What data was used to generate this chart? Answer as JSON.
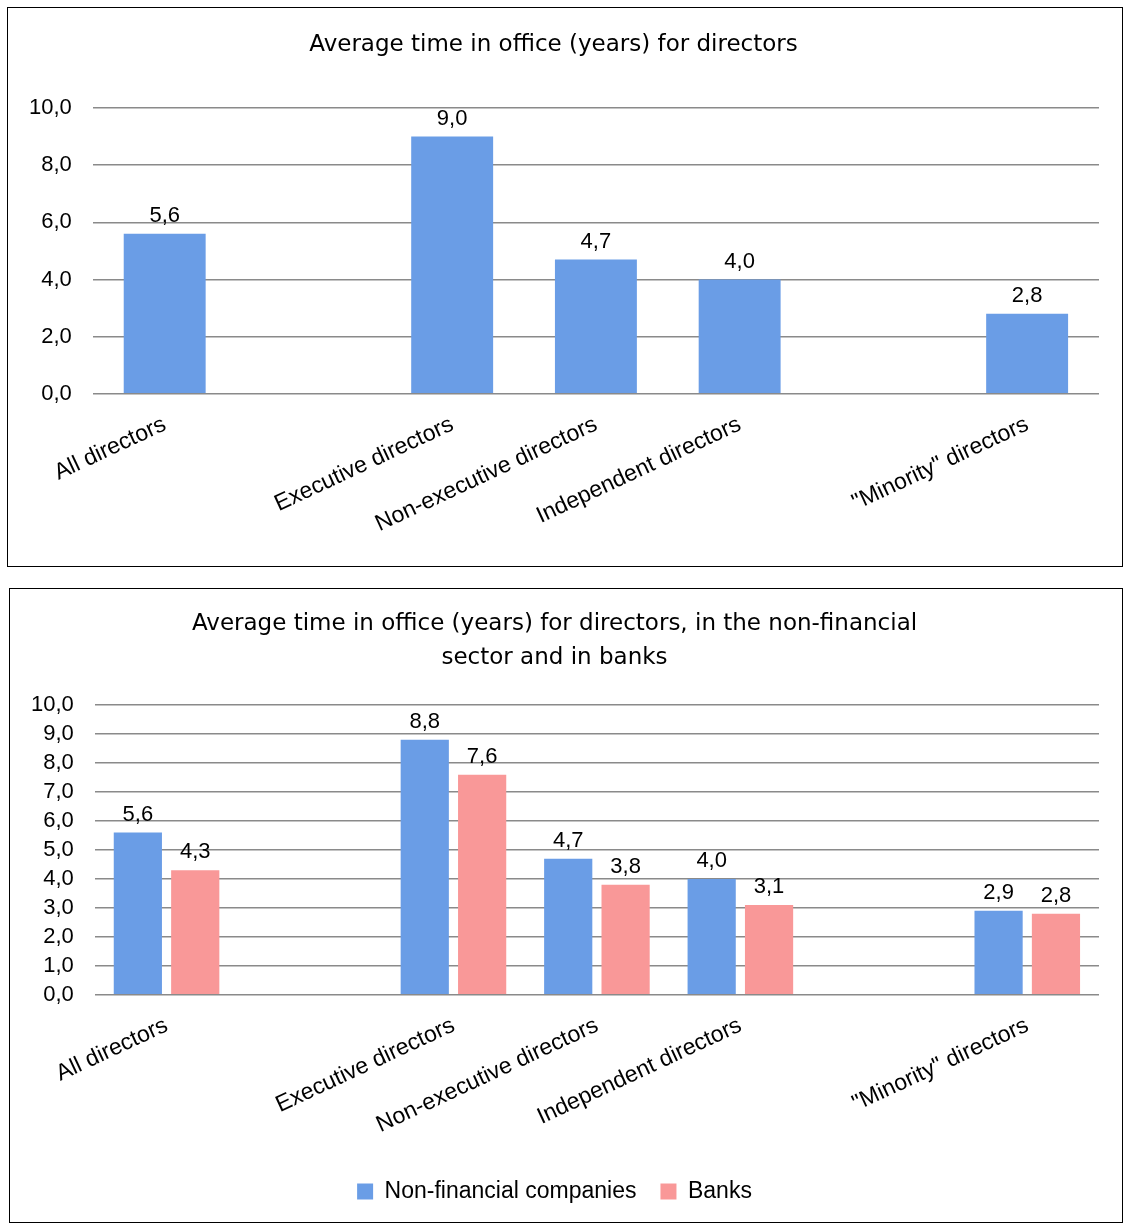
{
  "chart_data": [
    {
      "type": "bar",
      "title": "Average time in office (years) for directors",
      "categories": [
        "All directors",
        null,
        "Executive directors",
        "Non-executive directors",
        "Independent directors",
        null,
        "\"Minority\" directors"
      ],
      "values": [
        5.6,
        null,
        9.0,
        4.7,
        4.0,
        null,
        2.8
      ],
      "color": "#6a9de6",
      "value_labels": [
        "5,6",
        null,
        "9,0",
        "4,7",
        "4,0",
        null,
        "2,8"
      ],
      "ylim": [
        0,
        10
      ],
      "yticks": [
        {
          "value": 0,
          "label": "0,0"
        },
        {
          "value": 2,
          "label": "2,0"
        },
        {
          "value": 4,
          "label": "4,0"
        },
        {
          "value": 6,
          "label": "6,0"
        },
        {
          "value": 8,
          "label": "8,0"
        },
        {
          "value": 10,
          "label": "10,0"
        }
      ],
      "grid": "y",
      "legend": false
    },
    {
      "type": "bar",
      "title": "Average time in office (years) for directors, in the non-financial sector and in banks",
      "categories": [
        "All directors",
        null,
        "Executive directors",
        "Non-executive directors",
        "Independent directors",
        null,
        "\"Minority\" directors"
      ],
      "series": [
        {
          "name": "Non-financial companies",
          "color": "#6a9de6",
          "values": [
            5.6,
            null,
            8.8,
            4.7,
            4.0,
            null,
            2.9
          ],
          "value_labels": [
            "5,6",
            null,
            "8,8",
            "4,7",
            "4,0",
            null,
            "2,9"
          ]
        },
        {
          "name": "Banks",
          "color": "#f99898",
          "values": [
            4.3,
            null,
            7.6,
            3.8,
            3.1,
            null,
            2.8
          ],
          "value_labels": [
            "4,3",
            null,
            "7,6",
            "3,8",
            "3,1",
            null,
            "2,8"
          ]
        }
      ],
      "ylim": [
        0,
        10
      ],
      "yticks": [
        {
          "value": 0,
          "label": "0,0"
        },
        {
          "value": 1,
          "label": "1,0"
        },
        {
          "value": 2,
          "label": "2,0"
        },
        {
          "value": 3,
          "label": "3,0"
        },
        {
          "value": 4,
          "label": "4,0"
        },
        {
          "value": 5,
          "label": "5,0"
        },
        {
          "value": 6,
          "label": "6,0"
        },
        {
          "value": 7,
          "label": "7,0"
        },
        {
          "value": 8,
          "label": "8,0"
        },
        {
          "value": 9,
          "label": "9,0"
        },
        {
          "value": 10,
          "label": "10,0"
        }
      ],
      "grid": "y",
      "legend": "bottom"
    }
  ]
}
